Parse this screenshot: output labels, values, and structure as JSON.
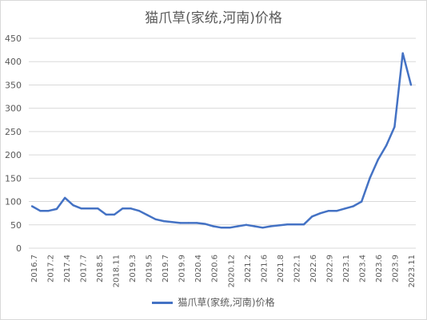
{
  "chart_data": {
    "type": "line",
    "title": "猫爪草(家统,河南)价格",
    "xlabel": "",
    "ylabel": "",
    "ylim": [
      0,
      450
    ],
    "yticks": [
      0,
      50,
      100,
      150,
      200,
      250,
      300,
      350,
      400,
      450
    ],
    "grid": true,
    "legend_position": "bottom",
    "x_tick_labels": [
      "2016.7",
      "2017.2",
      "2017.4",
      "2017.7",
      "2018.5",
      "2018.11",
      "2019.3",
      "2019.5",
      "2019.7",
      "2019.9",
      "2020.4",
      "2020.6",
      "2020.12",
      "2021.2",
      "2021.6",
      "2021.8",
      "2022.1",
      "2022.6",
      "2022.9",
      "2023.1",
      "2023.4",
      "2023.6",
      "2023.9",
      "2023.11"
    ],
    "series": [
      {
        "name": "猫爪草(家统,河南)价格",
        "color": "#4472c4",
        "values": [
          90,
          80,
          80,
          84,
          108,
          92,
          85,
          85,
          85,
          72,
          72,
          85,
          85,
          80,
          71,
          62,
          58,
          56,
          54,
          54,
          54,
          52,
          47,
          44,
          44,
          47,
          50,
          47,
          44,
          47,
          49,
          51,
          51,
          51,
          68,
          75,
          80,
          80,
          85,
          90,
          100,
          150,
          190,
          220,
          260,
          418,
          350
        ]
      }
    ]
  }
}
